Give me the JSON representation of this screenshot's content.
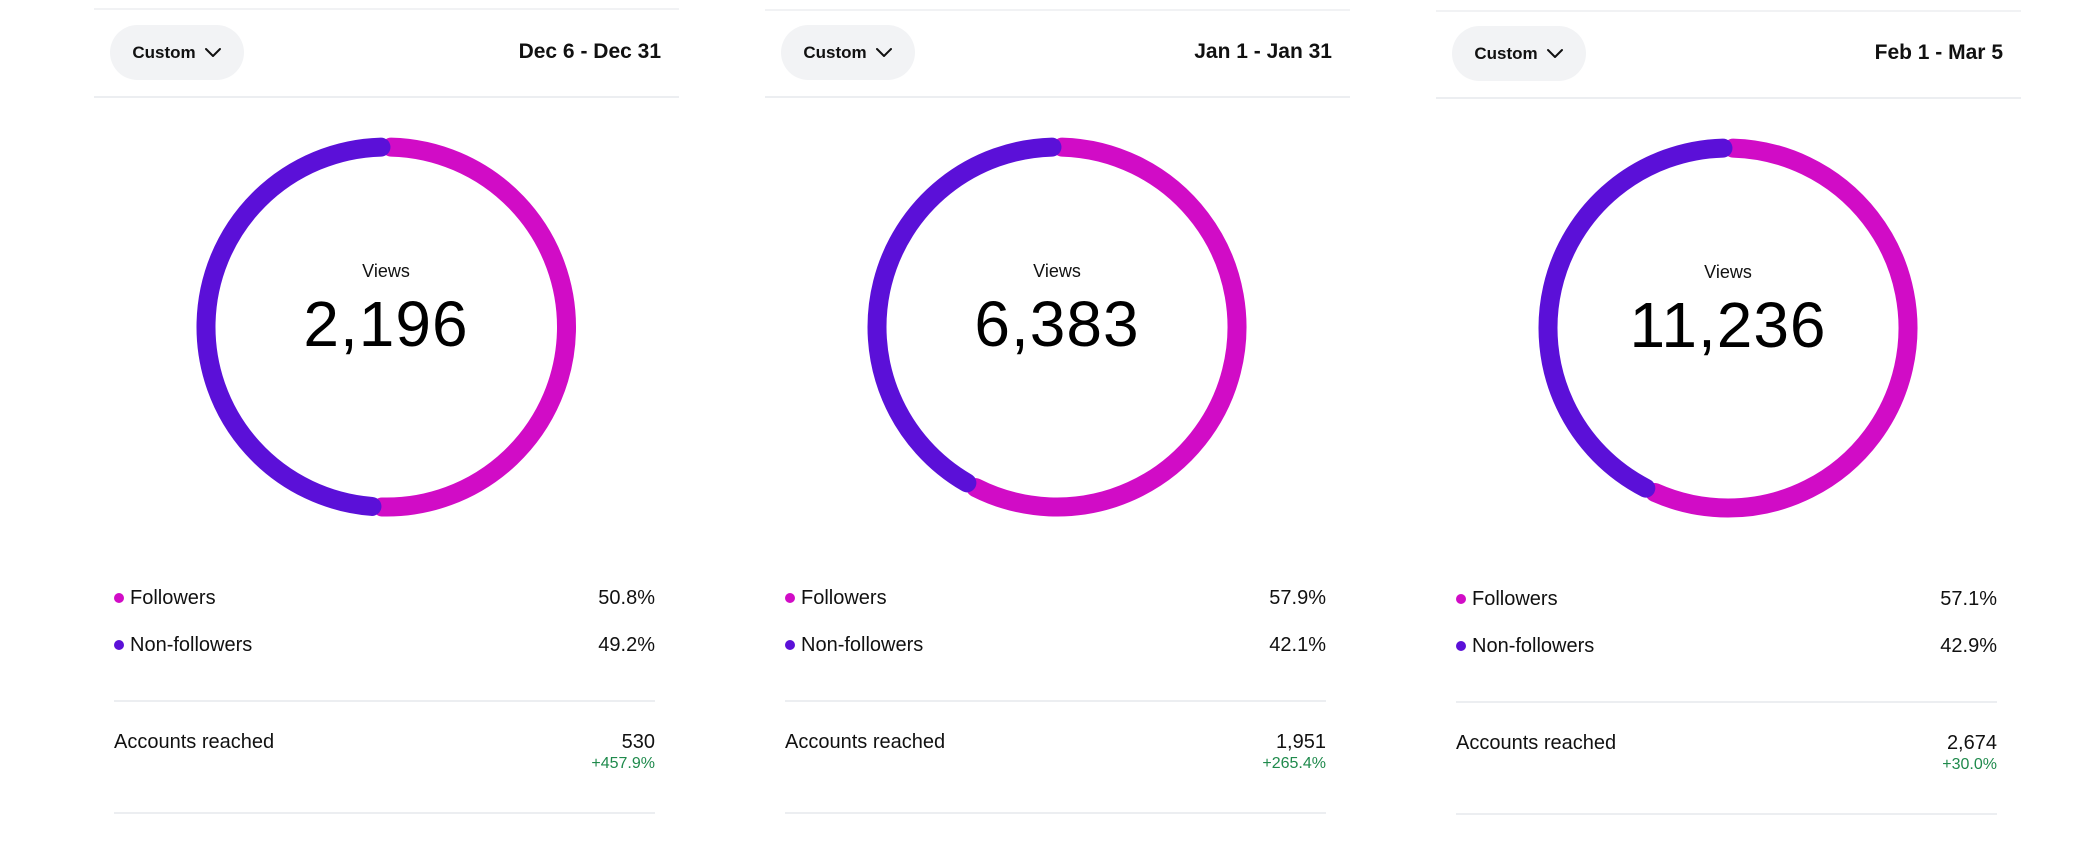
{
  "colors": {
    "followers": "#d10cc6",
    "non_followers": "#5b10d8",
    "change_positive": "#1f8a4c"
  },
  "panels": [
    {
      "filter_label": "Custom",
      "date_range": "Dec 6 - Dec 31",
      "center_label": "Views",
      "views": "2,196",
      "legend": [
        {
          "name": "Followers",
          "percent_text": "50.8%",
          "percent": 50.8
        },
        {
          "name": "Non-followers",
          "percent_text": "49.2%",
          "percent": 49.2
        }
      ],
      "accounts_reached": {
        "label": "Accounts reached",
        "value": "530",
        "change": "+457.9%"
      }
    },
    {
      "filter_label": "Custom",
      "date_range": "Jan 1 - Jan 31",
      "center_label": "Views",
      "views": "6,383",
      "legend": [
        {
          "name": "Followers",
          "percent_text": "57.9%",
          "percent": 57.9
        },
        {
          "name": "Non-followers",
          "percent_text": "42.1%",
          "percent": 42.1
        }
      ],
      "accounts_reached": {
        "label": "Accounts reached",
        "value": "1,951",
        "change": "+265.4%"
      }
    },
    {
      "filter_label": "Custom",
      "date_range": "Feb 1 - Mar 5",
      "center_label": "Views",
      "views": "11,236",
      "legend": [
        {
          "name": "Followers",
          "percent_text": "57.1%",
          "percent": 57.1
        },
        {
          "name": "Non-followers",
          "percent_text": "42.9%",
          "percent": 42.9
        }
      ],
      "accounts_reached": {
        "label": "Accounts reached",
        "value": "2,674",
        "change": "+30.0%"
      }
    }
  ]
}
